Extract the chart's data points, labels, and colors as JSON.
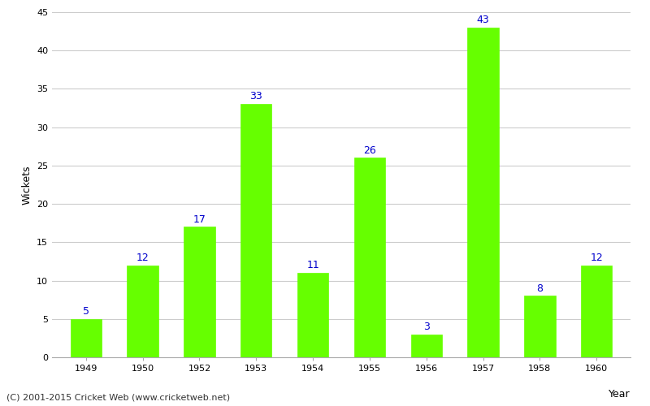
{
  "years": [
    "1949",
    "1950",
    "1952",
    "1953",
    "1954",
    "1955",
    "1956",
    "1957",
    "1958",
    "1960"
  ],
  "values": [
    5,
    12,
    17,
    33,
    11,
    26,
    3,
    43,
    8,
    12
  ],
  "bar_color": "#66ff00",
  "bar_edge_color": "#66ff00",
  "label_color": "#0000cc",
  "xlabel": "Year",
  "ylabel": "Wickets",
  "ylim": [
    0,
    45
  ],
  "yticks": [
    0,
    5,
    10,
    15,
    20,
    25,
    30,
    35,
    40,
    45
  ],
  "grid_color": "#cccccc",
  "background_color": "#ffffff",
  "footer_text": "(C) 2001-2015 Cricket Web (www.cricketweb.net)",
  "label_fontsize": 9,
  "axis_label_fontsize": 9,
  "tick_fontsize": 8,
  "footer_fontsize": 8
}
